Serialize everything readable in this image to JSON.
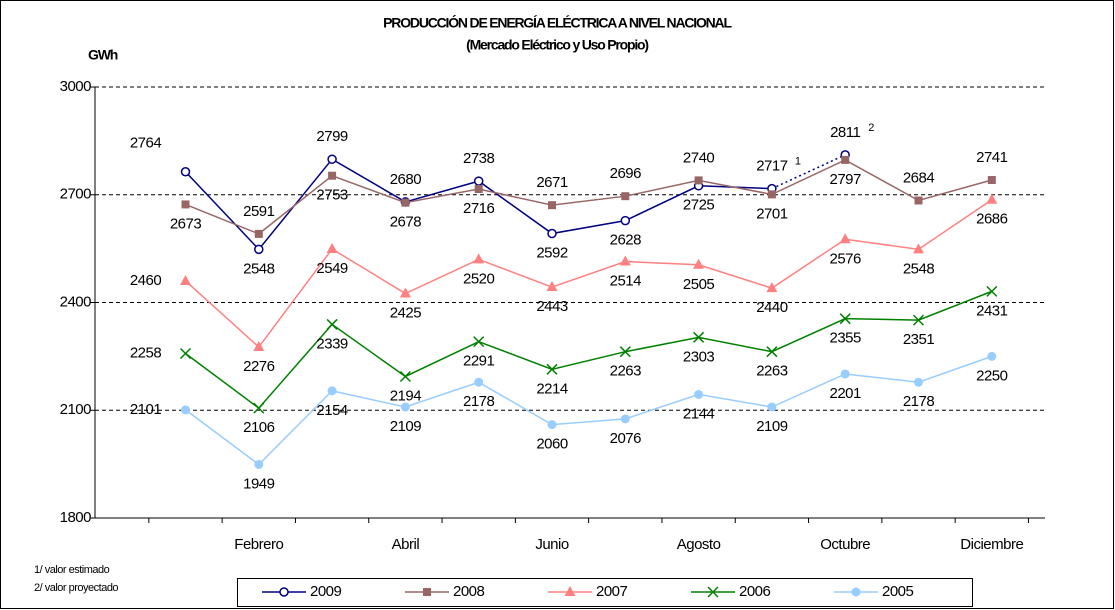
{
  "chart_data": {
    "type": "line",
    "title": "PRODUCCIÓN DE ENERGÍA ELÉCTRICA A NIVEL NACIONAL",
    "subtitle": "(Mercado Eléctrico y Uso Propio)",
    "ylabel": "GWh",
    "footnotes": [
      "1/ valor estimado",
      "2/ valor proyectado"
    ],
    "categories": [
      null,
      "Febrero",
      null,
      "Abril",
      null,
      "Junio",
      null,
      "Agosto",
      null,
      "Octubre",
      null,
      "Diciembre"
    ],
    "ylim": [
      1800,
      3000
    ],
    "yticks": [
      1800,
      2100,
      2400,
      2700,
      3000
    ],
    "grid": true,
    "legend": "bottom",
    "series": [
      {
        "name": "2009",
        "color": "#000080",
        "marker": "open-circle",
        "values": [
          2764,
          2548,
          2799,
          2680,
          2738,
          2592,
          2628,
          2725,
          2717,
          2811,
          null,
          null
        ],
        "footnote_marks": [
          null,
          null,
          null,
          null,
          null,
          null,
          null,
          null,
          "1",
          "2",
          null,
          null
        ],
        "dashed_last_segment": true
      },
      {
        "name": "2008",
        "color": "#996666",
        "marker": "square",
        "values": [
          2673,
          2591,
          2753,
          2678,
          2716,
          2671,
          2696,
          2740,
          2701,
          2797,
          2684,
          2741
        ]
      },
      {
        "name": "2007",
        "color": "#ff8080",
        "marker": "triangle",
        "values": [
          2460,
          2276,
          2549,
          2425,
          2520,
          2443,
          2514,
          2505,
          2440,
          2576,
          2548,
          2686
        ]
      },
      {
        "name": "2006",
        "color": "#008000",
        "marker": "x",
        "values": [
          2258,
          2106,
          2339,
          2194,
          2291,
          2214,
          2263,
          2303,
          2263,
          2355,
          2351,
          2431
        ]
      },
      {
        "name": "2005",
        "color": "#99ccff",
        "marker": "circle",
        "values": [
          2101,
          1949,
          2154,
          2109,
          2178,
          2060,
          2076,
          2144,
          2109,
          2201,
          2178,
          2250
        ]
      }
    ]
  }
}
